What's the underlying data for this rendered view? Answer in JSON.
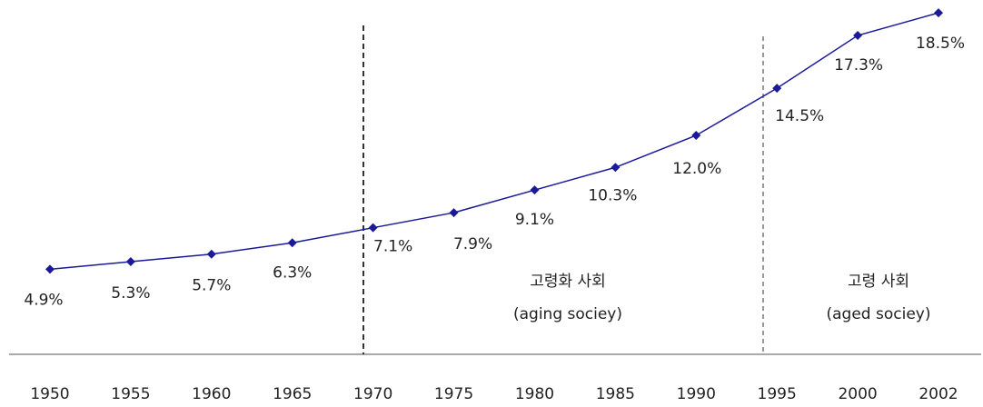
{
  "chart_data": {
    "type": "line",
    "categories": [
      "1950",
      "1955",
      "1960",
      "1965",
      "1970",
      "1975",
      "1980",
      "1985",
      "1990",
      "1995",
      "2000",
      "2002"
    ],
    "series": [
      {
        "color": "#1a1a99",
        "values": [
          4.9,
          5.3,
          5.7,
          6.3,
          7.1,
          7.9,
          9.1,
          10.3,
          12.0,
          14.5,
          17.3,
          18.5
        ],
        "value_labels": [
          "4.9%",
          "5.3%",
          "5.7%",
          "6.3%",
          "7.1%",
          "7.9%",
          "9.1%",
          "10.3%",
          "12.0%",
          "14.5%",
          "17.3%",
          "18.5%"
        ]
      }
    ],
    "ylim": [
      0,
      20
    ],
    "annotations": [
      "고령화 사회",
      "(aging sociey)",
      "고령 사회",
      "(aged sociey)"
    ]
  }
}
